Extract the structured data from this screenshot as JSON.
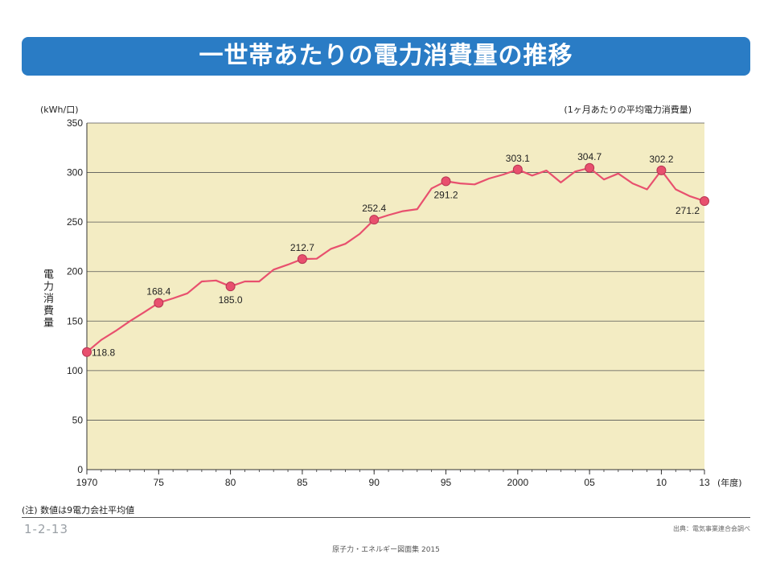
{
  "banner": {
    "title": "一世帯あたりの電力消費量の推移"
  },
  "chart_data": {
    "type": "line",
    "title": "一世帯あたりの電力消費量の推移",
    "ylabel": "電力消費量",
    "yunit": "(kWh/口)",
    "subtitle": "(1ヶ月あたりの平均電力消費量)",
    "xunit": "(年度)",
    "ylim": [
      0,
      350
    ],
    "yticks": [
      0,
      50,
      100,
      150,
      200,
      250,
      300,
      350
    ],
    "xlim": [
      1970,
      2013
    ],
    "xticks": [
      {
        "x": 1970,
        "label": "1970"
      },
      {
        "x": 1975,
        "label": "75"
      },
      {
        "x": 1980,
        "label": "80"
      },
      {
        "x": 1985,
        "label": "85"
      },
      {
        "x": 1990,
        "label": "90"
      },
      {
        "x": 1995,
        "label": "95"
      },
      {
        "x": 2000,
        "label": "2000"
      },
      {
        "x": 2005,
        "label": "05"
      },
      {
        "x": 2010,
        "label": "10"
      },
      {
        "x": 2013,
        "label": "13"
      }
    ],
    "grid": true,
    "series": [
      {
        "color": "#e8506e",
        "x": [
          1970,
          1971,
          1972,
          1973,
          1974,
          1975,
          1976,
          1977,
          1978,
          1979,
          1980,
          1981,
          1982,
          1983,
          1984,
          1985,
          1986,
          1987,
          1988,
          1989,
          1990,
          1991,
          1992,
          1993,
          1994,
          1995,
          1996,
          1997,
          1998,
          1999,
          2000,
          2001,
          2002,
          2003,
          2004,
          2005,
          2006,
          2007,
          2008,
          2009,
          2010,
          2011,
          2012,
          2013
        ],
        "y": [
          118.8,
          131,
          140,
          150,
          159,
          168.4,
          173,
          178,
          190,
          191,
          185.0,
          190,
          190,
          202,
          207,
          212.7,
          213,
          223,
          228,
          238,
          252.4,
          257,
          261,
          263,
          284,
          291.2,
          289,
          288,
          294,
          298,
          303.1,
          297,
          302,
          290,
          301,
          304.7,
          293,
          299,
          289,
          283,
          302.2,
          283,
          276,
          271.2
        ]
      }
    ],
    "markers": [
      {
        "x": 1970,
        "y": 118.8,
        "label": "118.8",
        "pos": "right"
      },
      {
        "x": 1975,
        "y": 168.4,
        "label": "168.4",
        "pos": "above"
      },
      {
        "x": 1980,
        "y": 185.0,
        "label": "185.0",
        "pos": "below"
      },
      {
        "x": 1985,
        "y": 212.7,
        "label": "212.7",
        "pos": "above"
      },
      {
        "x": 1990,
        "y": 252.4,
        "label": "252.4",
        "pos": "above"
      },
      {
        "x": 1995,
        "y": 291.2,
        "label": "291.2",
        "pos": "below"
      },
      {
        "x": 2000,
        "y": 303.1,
        "label": "303.1",
        "pos": "above"
      },
      {
        "x": 2005,
        "y": 304.7,
        "label": "304.7",
        "pos": "above"
      },
      {
        "x": 2010,
        "y": 302.2,
        "label": "302.2",
        "pos": "above"
      },
      {
        "x": 2013,
        "y": 271.2,
        "label": "271.2",
        "pos": "belowleft"
      }
    ],
    "colors": {
      "plot_bg": "#f3ecc3",
      "line": "#e8506e",
      "marker": "#e8506e"
    }
  },
  "notes": {
    "footnote": "(注) 数値は9電力会社平均値"
  },
  "footer": {
    "page_id": "1-2-13",
    "source": "出典：電気事業連合会調べ",
    "publication": "原子力・エネルギー図面集 2015"
  }
}
